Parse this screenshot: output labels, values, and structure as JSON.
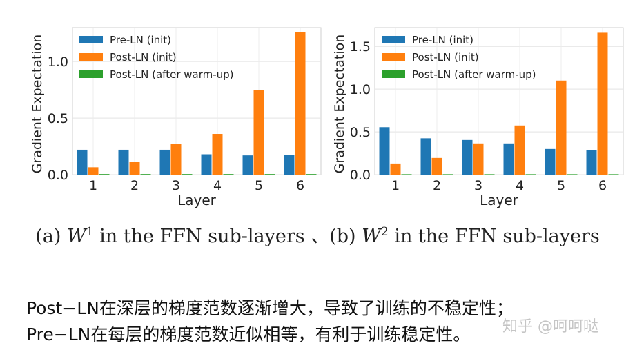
{
  "chart_data": [
    {
      "type": "bar",
      "categories": [
        "1",
        "2",
        "3",
        "4",
        "5",
        "6"
      ],
      "series": [
        {
          "name": "Pre-LN (init)",
          "color": "#1f77b4",
          "values": [
            0.22,
            0.22,
            0.22,
            0.18,
            0.17,
            0.175
          ]
        },
        {
          "name": "Post-LN (init)",
          "color": "#ff7f0e",
          "values": [
            0.065,
            0.115,
            0.27,
            0.36,
            0.75,
            1.26
          ]
        },
        {
          "name": "Post-LN (after warm-up)",
          "color": "#2ca02c",
          "values": [
            0.005,
            0.005,
            0.005,
            0.005,
            0.005,
            0.005
          ]
        }
      ],
      "xlabel": "Layer",
      "ylabel": "Gradient Expectation",
      "ylim": [
        0,
        1.3
      ],
      "yticks": [
        "0.0",
        "0.5",
        "1.0"
      ],
      "legend": "top-left",
      "grid": true
    },
    {
      "type": "bar",
      "categories": [
        "1",
        "2",
        "3",
        "4",
        "5",
        "6"
      ],
      "series": [
        {
          "name": "Pre-LN (init)",
          "color": "#1f77b4",
          "values": [
            0.555,
            0.425,
            0.405,
            0.365,
            0.3,
            0.29
          ]
        },
        {
          "name": "Post-LN (init)",
          "color": "#ff7f0e",
          "values": [
            0.13,
            0.195,
            0.365,
            0.575,
            1.1,
            1.66
          ]
        },
        {
          "name": "Post-LN (after warm-up)",
          "color": "#2ca02c",
          "values": [
            0.005,
            0.005,
            0.005,
            0.005,
            0.005,
            0.005
          ]
        }
      ],
      "xlabel": "Layer",
      "ylabel": "Gradient Expectation",
      "ylim": [
        0,
        1.72
      ],
      "yticks": [
        "0.0",
        "0.5",
        "1.0",
        "1.5"
      ],
      "legend": "top-left",
      "grid": true
    }
  ],
  "caption": {
    "a_prefix": "(a) ",
    "a_var": "W",
    "a_sup": "1",
    "a_suffix": " in the FFN sub-layers ",
    "separator": "、",
    "b_prefix": "(b) ",
    "b_var": "W",
    "b_sup": "2",
    "b_suffix": " in the FFN sub-layers"
  },
  "note": {
    "line1": "Post−LN在深层的梯度范数逐渐增大，导致了训练的不稳定性；",
    "line2": "Pre−LN在每层的梯度范数近似相等，有利于训练稳定性。"
  },
  "watermark": "知乎 @呵呵哒"
}
